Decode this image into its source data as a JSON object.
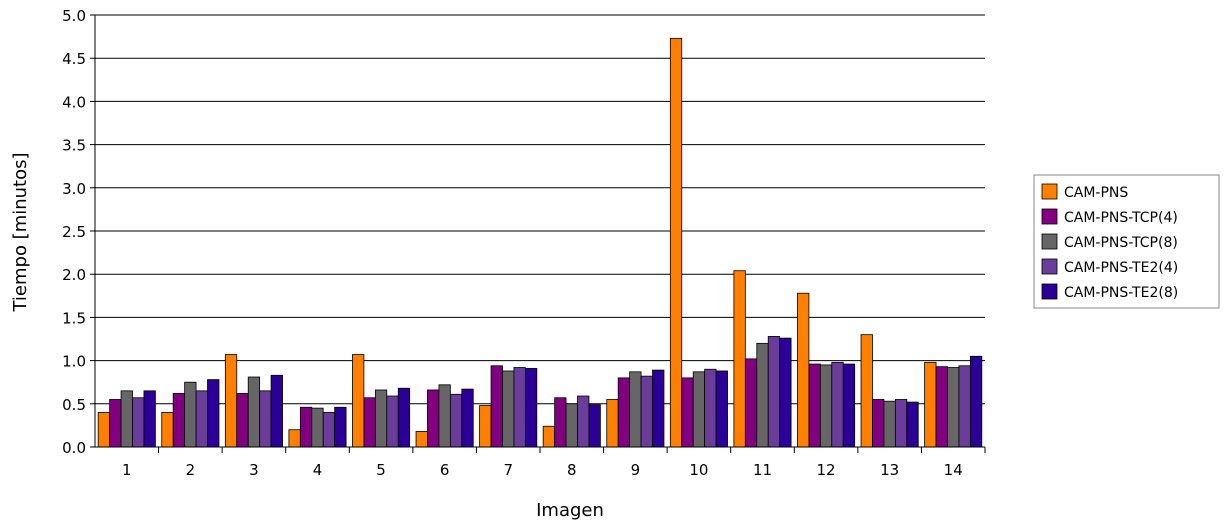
{
  "chart_data": {
    "type": "bar",
    "title": "",
    "xlabel": "Imagen",
    "ylabel": "Tiempo [minutos]",
    "ylim": [
      0,
      5
    ],
    "yticks": [
      "0.0",
      "0.5",
      "1.0",
      "1.5",
      "2.0",
      "2.5",
      "3.0",
      "3.5",
      "4.0",
      "4.5",
      "5.0"
    ],
    "grid": "horizontal",
    "legend_position": "right",
    "categories": [
      "1",
      "2",
      "3",
      "4",
      "5",
      "6",
      "7",
      "8",
      "9",
      "10",
      "11",
      "12",
      "13",
      "14"
    ],
    "series": [
      {
        "name": "CAM-PNS",
        "color": "#ff7f00",
        "values": [
          0.4,
          0.4,
          1.07,
          0.2,
          1.07,
          0.18,
          0.48,
          0.24,
          0.55,
          4.73,
          2.04,
          1.78,
          1.3,
          0.98
        ]
      },
      {
        "name": "CAM-PNS-TCP(4)",
        "color": "#800080",
        "values": [
          0.55,
          0.62,
          0.62,
          0.46,
          0.57,
          0.66,
          0.94,
          0.57,
          0.8,
          0.8,
          1.02,
          0.96,
          0.55,
          0.93
        ]
      },
      {
        "name": "CAM-PNS-TCP(8)",
        "color": "#666666",
        "values": [
          0.65,
          0.75,
          0.81,
          0.45,
          0.66,
          0.72,
          0.88,
          0.5,
          0.87,
          0.87,
          1.2,
          0.95,
          0.53,
          0.92
        ]
      },
      {
        "name": "CAM-PNS-TE2(4)",
        "color": "#6a3d9a",
        "values": [
          0.57,
          0.65,
          0.65,
          0.4,
          0.59,
          0.61,
          0.92,
          0.59,
          0.82,
          0.9,
          1.28,
          0.98,
          0.55,
          0.94
        ]
      },
      {
        "name": "CAM-PNS-TE2(8)",
        "color": "#2a0096",
        "values": [
          0.65,
          0.78,
          0.83,
          0.46,
          0.68,
          0.67,
          0.91,
          0.49,
          0.89,
          0.88,
          1.26,
          0.96,
          0.52,
          1.05
        ]
      }
    ]
  }
}
